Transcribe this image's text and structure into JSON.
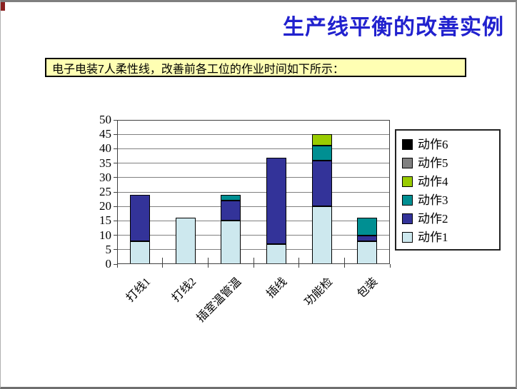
{
  "page": {
    "title": "生产线平衡的改善实例",
    "subtitle": "电子电装7人柔性线，改善前各工位的作业时间如下所示："
  },
  "colors": {
    "title_blue": "#2121CE",
    "subtitle_bg": "#FFFFB3",
    "slide_border_gray": "#8F8F8F",
    "gridline_gray": "#808080"
  },
  "chart_data": {
    "type": "bar",
    "stacked": true,
    "title": "",
    "xlabel": "",
    "ylabel": "",
    "categories": [
      "打线1",
      "打线2",
      "插室温管温",
      "插线",
      "功能检",
      "包装"
    ],
    "series": [
      {
        "name": "动作1",
        "color": "#CDE8EE",
        "values": [
          8,
          16,
          15,
          7,
          20,
          8
        ]
      },
      {
        "name": "动作2",
        "color": "#333399",
        "values": [
          16,
          0,
          7,
          30,
          16,
          2
        ]
      },
      {
        "name": "动作3",
        "color": "#008F92",
        "values": [
          0,
          0,
          2,
          0,
          5,
          6
        ]
      },
      {
        "name": "动作4",
        "color": "#99CC00",
        "values": [
          0,
          0,
          0,
          0,
          4,
          0
        ]
      },
      {
        "name": "动作5",
        "color": "#808080",
        "values": [
          0,
          0,
          0,
          0,
          0,
          0
        ]
      },
      {
        "name": "动作6",
        "color": "#000000",
        "values": [
          0,
          0,
          0,
          0,
          0,
          0
        ]
      }
    ],
    "ylim": [
      0,
      50
    ],
    "yticks": [
      0,
      5,
      10,
      15,
      20,
      25,
      30,
      35,
      40,
      45,
      50
    ],
    "grid": true,
    "legend_position": "right",
    "legend_order": [
      "动作6",
      "动作5",
      "动作4",
      "动作3",
      "动作2",
      "动作1"
    ]
  }
}
